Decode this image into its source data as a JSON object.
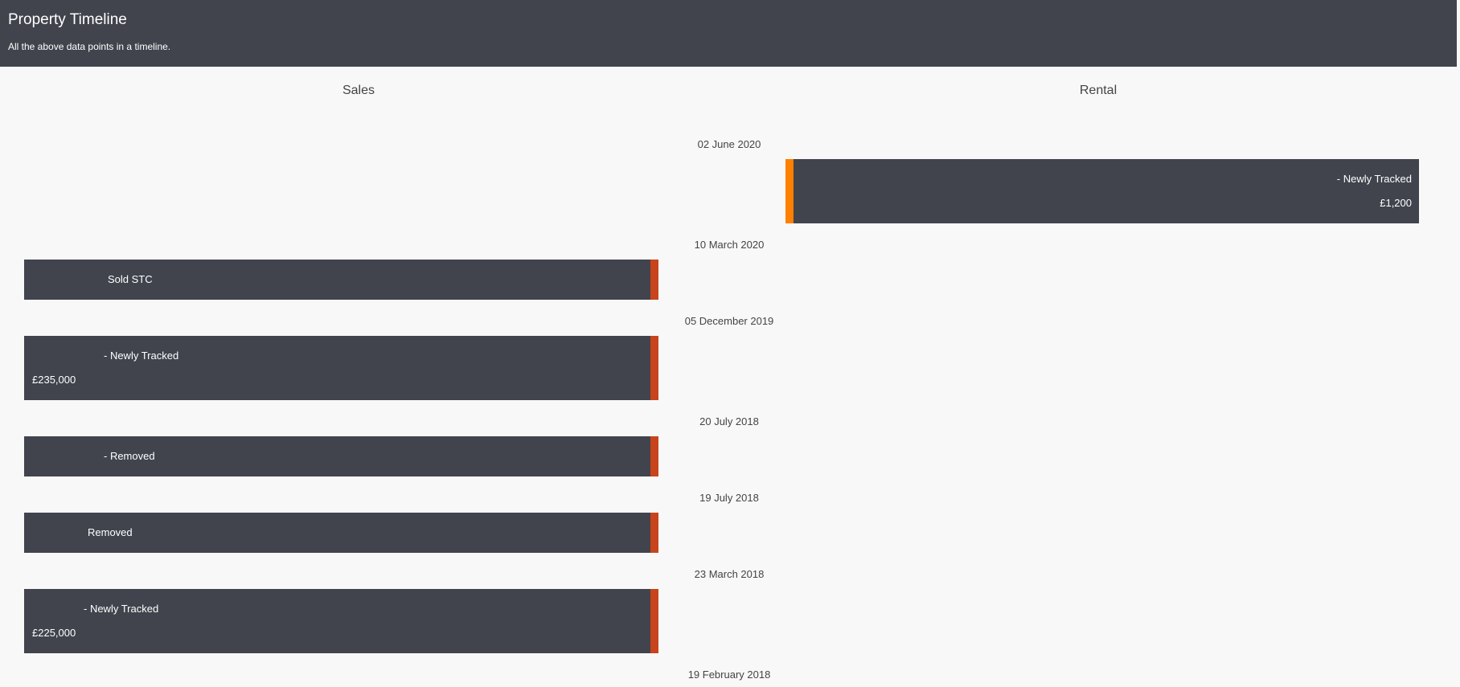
{
  "header": {
    "title": "Property Timeline",
    "subtitle": "All the above data points in a timeline."
  },
  "columns": {
    "sales": "Sales",
    "rental": "Rental"
  },
  "dates": [
    "02 June 2020",
    "10 March 2020",
    "05 December 2019",
    "20 July 2018",
    "19 July 2018",
    "23 March 2018",
    "19 February 2018"
  ],
  "rental_events": [
    {
      "status": "- Newly Tracked",
      "price": "£1,200"
    }
  ],
  "sales_events": [
    {
      "status": "Sold STC"
    },
    {
      "status": "- Newly Tracked",
      "price": "£235,000"
    },
    {
      "status": "- Removed"
    },
    {
      "status": "Removed"
    },
    {
      "status": "- Newly Tracked",
      "price": "£225,000"
    }
  ],
  "colors": {
    "card": "#41444d",
    "sales_accent": "#c8441c",
    "rental_accent": "#ff7f00"
  }
}
